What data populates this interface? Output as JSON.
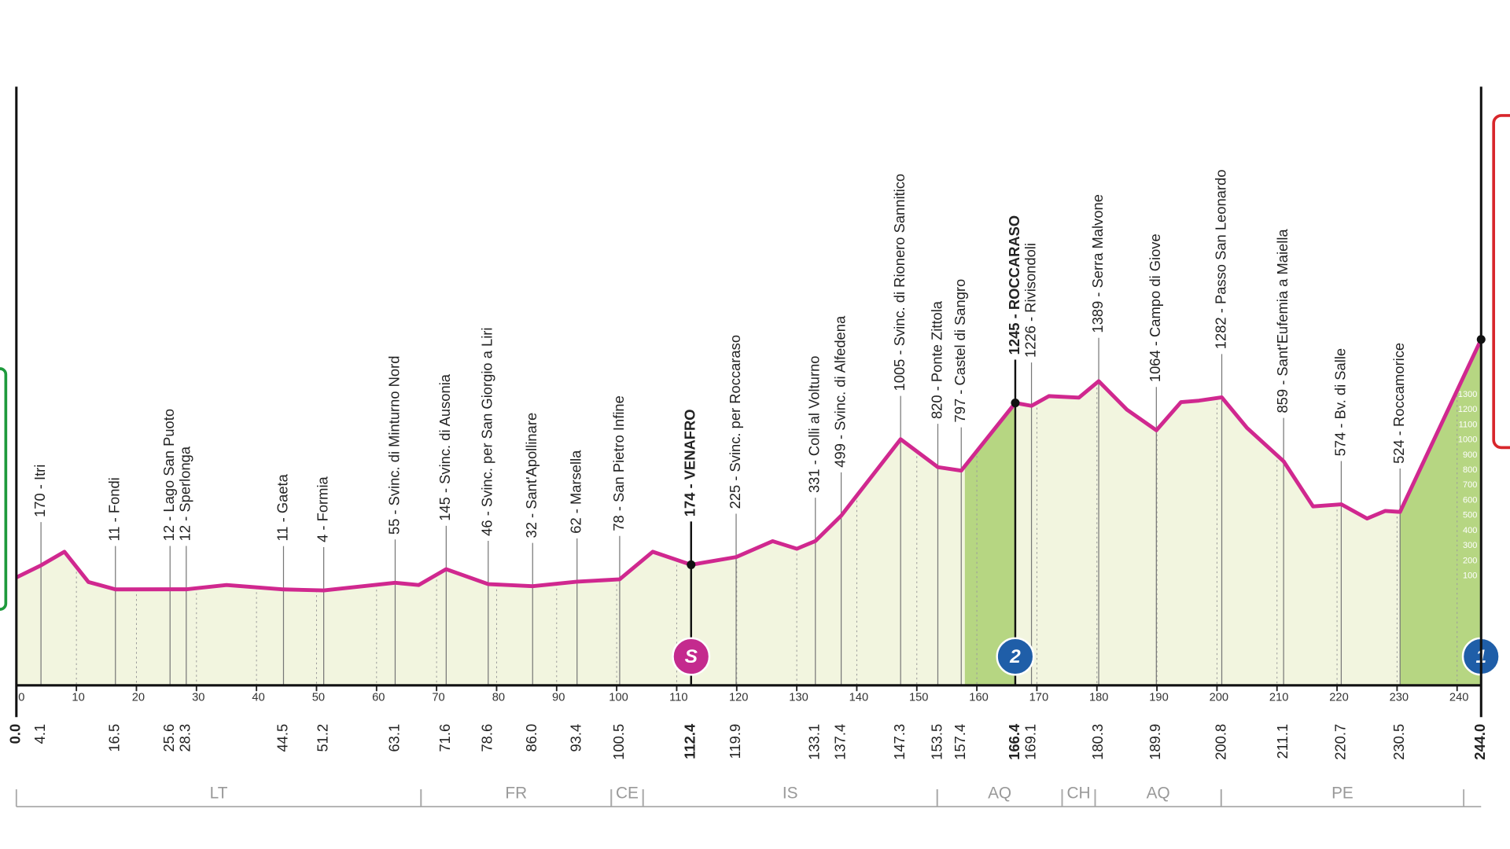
{
  "chart_data": {
    "type": "line",
    "x": [
      0,
      4.1,
      8,
      12,
      16.5,
      25.6,
      28.3,
      35,
      44.5,
      51.2,
      63.1,
      67,
      71.6,
      78.6,
      86,
      93.4,
      100.5,
      106,
      112.4,
      119.9,
      126,
      130,
      133.1,
      137.4,
      147.3,
      153.5,
      157.4,
      166.4,
      169.1,
      172,
      177,
      180.3,
      185,
      189.9,
      194,
      197,
      200.8,
      205,
      211.1,
      216,
      220.7,
      225,
      228,
      230.5,
      244
    ],
    "values": [
      90,
      170,
      260,
      60,
      11,
      12,
      12,
      40,
      11,
      4,
      55,
      40,
      145,
      46,
      32,
      62,
      78,
      260,
      174,
      225,
      330,
      280,
      331,
      499,
      1005,
      820,
      797,
      1245,
      1226,
      1290,
      1280,
      1389,
      1200,
      1064,
      1250,
      1260,
      1282,
      1080,
      859,
      560,
      574,
      480,
      530,
      524,
      1665
    ],
    "color": "#d0288f",
    "xlim": [
      0,
      244
    ],
    "ylim": [
      -624,
      3338
    ],
    "xticks": [
      0,
      10,
      20,
      30,
      40,
      50,
      60,
      70,
      80,
      90,
      100,
      110,
      120,
      130,
      140,
      150,
      160,
      170,
      180,
      190,
      200,
      210,
      220,
      230,
      240
    ],
    "yticks": [
      100,
      200,
      300,
      400,
      500,
      600,
      700,
      800,
      900,
      1000,
      1100,
      1200,
      1300
    ],
    "waypoint_km": [
      0,
      4.1,
      16.5,
      25.6,
      28.3,
      44.5,
      51.2,
      63.1,
      71.6,
      78.6,
      86.0,
      93.4,
      100.5,
      112.4,
      119.9,
      133.1,
      137.4,
      147.3,
      153.5,
      157.4,
      166.4,
      169.1,
      180.3,
      189.9,
      200.8,
      211.1,
      220.7,
      230.5,
      244.0
    ],
    "waypoint_km_labels": [
      "0.0",
      "4.1",
      "16.5",
      "25.6",
      "28.3",
      "44.5",
      "51.2",
      "63.1",
      "71.6",
      "78.6",
      "86.0",
      "93.4",
      "100.5",
      "112.4",
      "119.9",
      "133.1",
      "137.4",
      "147.3",
      "153.5",
      "157.4",
      "166.4",
      "169.1",
      "180.3",
      "189.9",
      "200.8",
      "211.1",
      "220.7",
      "230.5",
      "244.0"
    ],
    "waypoint_names": [
      null,
      "170 - Itri",
      "11 - Fondi",
      "12 - Lago San Puoto",
      "12 - Sperlonga",
      "11 - Gaeta",
      "4 - Formia",
      "55 - Svinc. di Minturno Nord",
      "145 - Svinc. di Ausonia",
      "46 - Svinc. per San Giorgio a Liri",
      "32 - Sant'Apollinare",
      "62 - Marsella",
      "78 - San Pietro Infine",
      "174 - VENAFRO",
      "225 - Svinc. per Roccaraso",
      "331 - Colli al Volturno",
      "499 - Svinc. di Alfedena",
      "1005 - Svinc. di Rionero Sannitico",
      "820 - Ponte Zittola",
      "797 - Castel di Sangro",
      "1245 - ROCCARASO",
      "1226 - Rivisondoli",
      "1389 - Serra Malvone",
      "1064 - Campo di Giove",
      "1282 - Passo San Leonardo",
      "859 - Sant'Eufemia a Maiella",
      "574 - Bv. di Salle",
      "524 - Roccamorice",
      null
    ],
    "waypoint_bold": [
      0,
      13,
      20,
      28
    ],
    "climbs": [
      {
        "start": 158,
        "end": 166.4
      },
      {
        "start": 230.5,
        "end": 244
      }
    ],
    "climb_color": "#b6d682",
    "area_color": "#f2f5df",
    "markers": [
      {
        "km": 112.4,
        "label": "S",
        "color": "#c42a8e"
      },
      {
        "km": 166.4,
        "label": "2",
        "color": "#1f5ea8"
      },
      {
        "km": 244,
        "label": "1",
        "color": "#1f5ea8"
      }
    ],
    "regions": [
      {
        "name": "LT",
        "start": 0,
        "end": 67.4
      },
      {
        "name": "FR",
        "start": 67.4,
        "end": 99.1
      },
      {
        "name": "CE",
        "start": 99.1,
        "end": 104.4
      },
      {
        "name": "IS",
        "start": 104.4,
        "end": 153.4
      },
      {
        "name": "AQ",
        "start": 153.4,
        "end": 174.2
      },
      {
        "name": "CH",
        "start": 174.2,
        "end": 179.7
      },
      {
        "name": "AQ",
        "start": 179.7,
        "end": 200.7
      },
      {
        "name": "PE",
        "start": 200.7,
        "end": 241.1
      }
    ]
  }
}
